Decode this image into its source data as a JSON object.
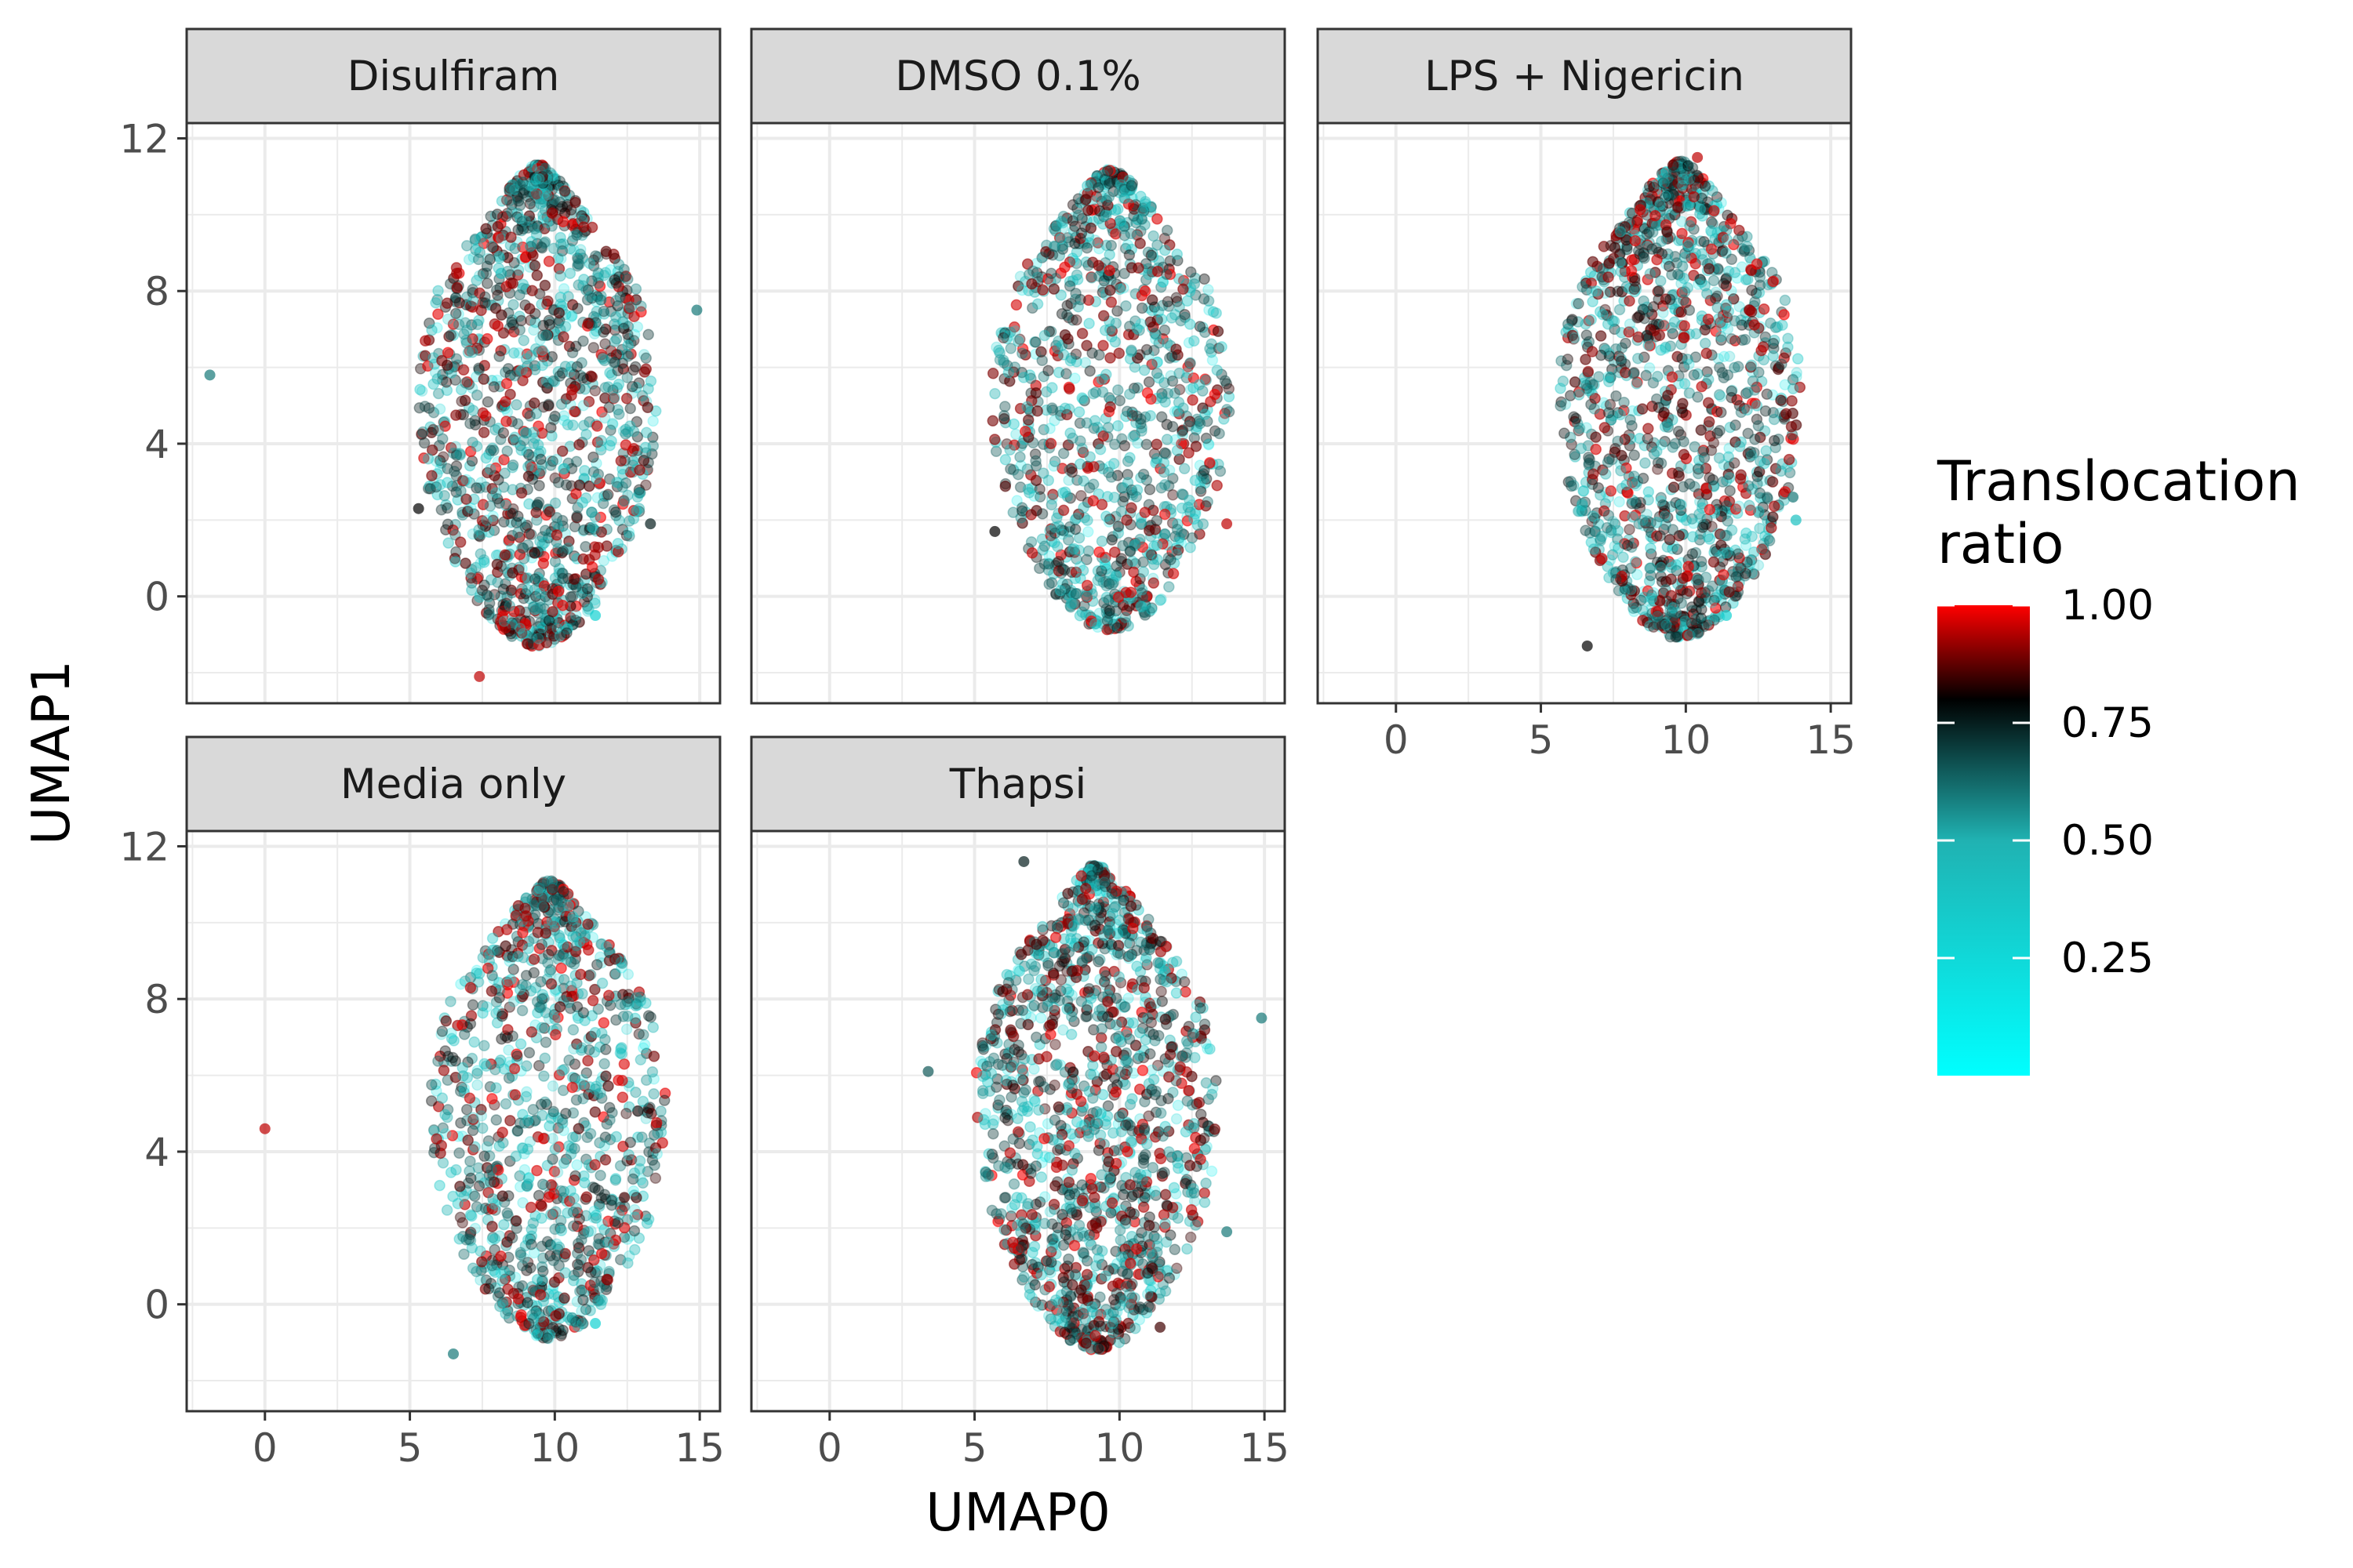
{
  "chart_data": {
    "type": "scatter",
    "facet_layout": "wrap",
    "xlabel": "UMAP0",
    "ylabel": "UMAP1",
    "xlim": [
      -2.7,
      15.7
    ],
    "ylim": [
      -2.8,
      12.4
    ],
    "x_ticks": [
      0,
      5,
      10,
      15
    ],
    "y_ticks": [
      0,
      4,
      8,
      12
    ],
    "grid": true,
    "legend": {
      "title": [
        "Translocation",
        "ratio"
      ],
      "position": "right",
      "ticks": [
        "1.00",
        "0.75",
        "0.50",
        "0.25"
      ],
      "tick_values": [
        1.0,
        0.75,
        0.5,
        0.25
      ],
      "range": [
        0.0,
        1.0
      ],
      "colors": {
        "low": "#00ffff",
        "mid_low": "#20b2b2",
        "mid": "#000000",
        "high": "#ff0000"
      }
    },
    "panels": [
      {
        "name": "Disulfiram",
        "cloud": {
          "x_center": 9.4,
          "y_center": 4.9,
          "x_half_width": 4.1,
          "y_range": [
            -1.3,
            11.3
          ],
          "bias": 0.68,
          "n": 1400,
          "seed": 11
        },
        "points": [
          {
            "x": -1.9,
            "y": 5.8,
            "v": 0.6
          },
          {
            "x": 14.9,
            "y": 7.5,
            "v": 0.6
          },
          {
            "x": 7.4,
            "y": -2.1,
            "v": 0.95
          },
          {
            "x": 13.3,
            "y": 1.9,
            "v": 0.75
          },
          {
            "x": 11.4,
            "y": -0.5,
            "v": 0.3
          },
          {
            "x": 5.3,
            "y": 2.3,
            "v": 0.8
          }
        ]
      },
      {
        "name": "DMSO 0.1%",
        "cloud": {
          "x_center": 9.7,
          "y_center": 4.6,
          "x_half_width": 4.1,
          "y_range": [
            -0.9,
            11.2
          ],
          "bias": 0.52,
          "n": 1100,
          "seed": 23
        },
        "points": [
          {
            "x": 13.7,
            "y": 1.9,
            "v": 0.95
          },
          {
            "x": 5.7,
            "y": 1.7,
            "v": 0.8
          }
        ]
      },
      {
        "name": "LPS + Nigericin",
        "cloud": {
          "x_center": 9.8,
          "y_center": 4.8,
          "x_half_width": 4.2,
          "y_range": [
            -1.1,
            11.4
          ],
          "bias": 0.7,
          "n": 1400,
          "seed": 37
        },
        "points": [
          {
            "x": 10.4,
            "y": 11.5,
            "v": 0.95
          },
          {
            "x": 6.6,
            "y": -1.3,
            "v": 0.8
          },
          {
            "x": 13.7,
            "y": 2.6,
            "v": 0.6
          },
          {
            "x": 13.8,
            "y": 2.0,
            "v": 0.4
          },
          {
            "x": 11.4,
            "y": -0.5,
            "v": 0.3
          }
        ]
      },
      {
        "name": "Media only",
        "cloud": {
          "x_center": 9.8,
          "y_center": 5.0,
          "x_half_width": 4.1,
          "y_range": [
            -0.9,
            11.1
          ],
          "bias": 0.55,
          "n": 1100,
          "seed": 41
        },
        "points": [
          {
            "x": 0.0,
            "y": 4.6,
            "v": 0.95
          },
          {
            "x": 6.5,
            "y": -1.3,
            "v": 0.6
          },
          {
            "x": 11.4,
            "y": -0.5,
            "v": 0.3
          },
          {
            "x": 12.4,
            "y": 2.8,
            "v": 0.85
          }
        ]
      },
      {
        "name": "Thapsi",
        "cloud": {
          "x_center": 9.2,
          "y_center": 5.0,
          "x_half_width": 4.2,
          "y_range": [
            -1.2,
            11.5
          ],
          "bias": 0.68,
          "n": 1400,
          "seed": 53
        },
        "points": [
          {
            "x": 3.4,
            "y": 6.1,
            "v": 0.65
          },
          {
            "x": 14.9,
            "y": 7.5,
            "v": 0.6
          },
          {
            "x": 13.7,
            "y": 1.9,
            "v": 0.6
          },
          {
            "x": 6.7,
            "y": 11.6,
            "v": 0.75
          },
          {
            "x": 11.4,
            "y": -0.6,
            "v": 0.85
          },
          {
            "x": 9.6,
            "y": 9.8,
            "v": 0.6
          }
        ]
      }
    ]
  }
}
